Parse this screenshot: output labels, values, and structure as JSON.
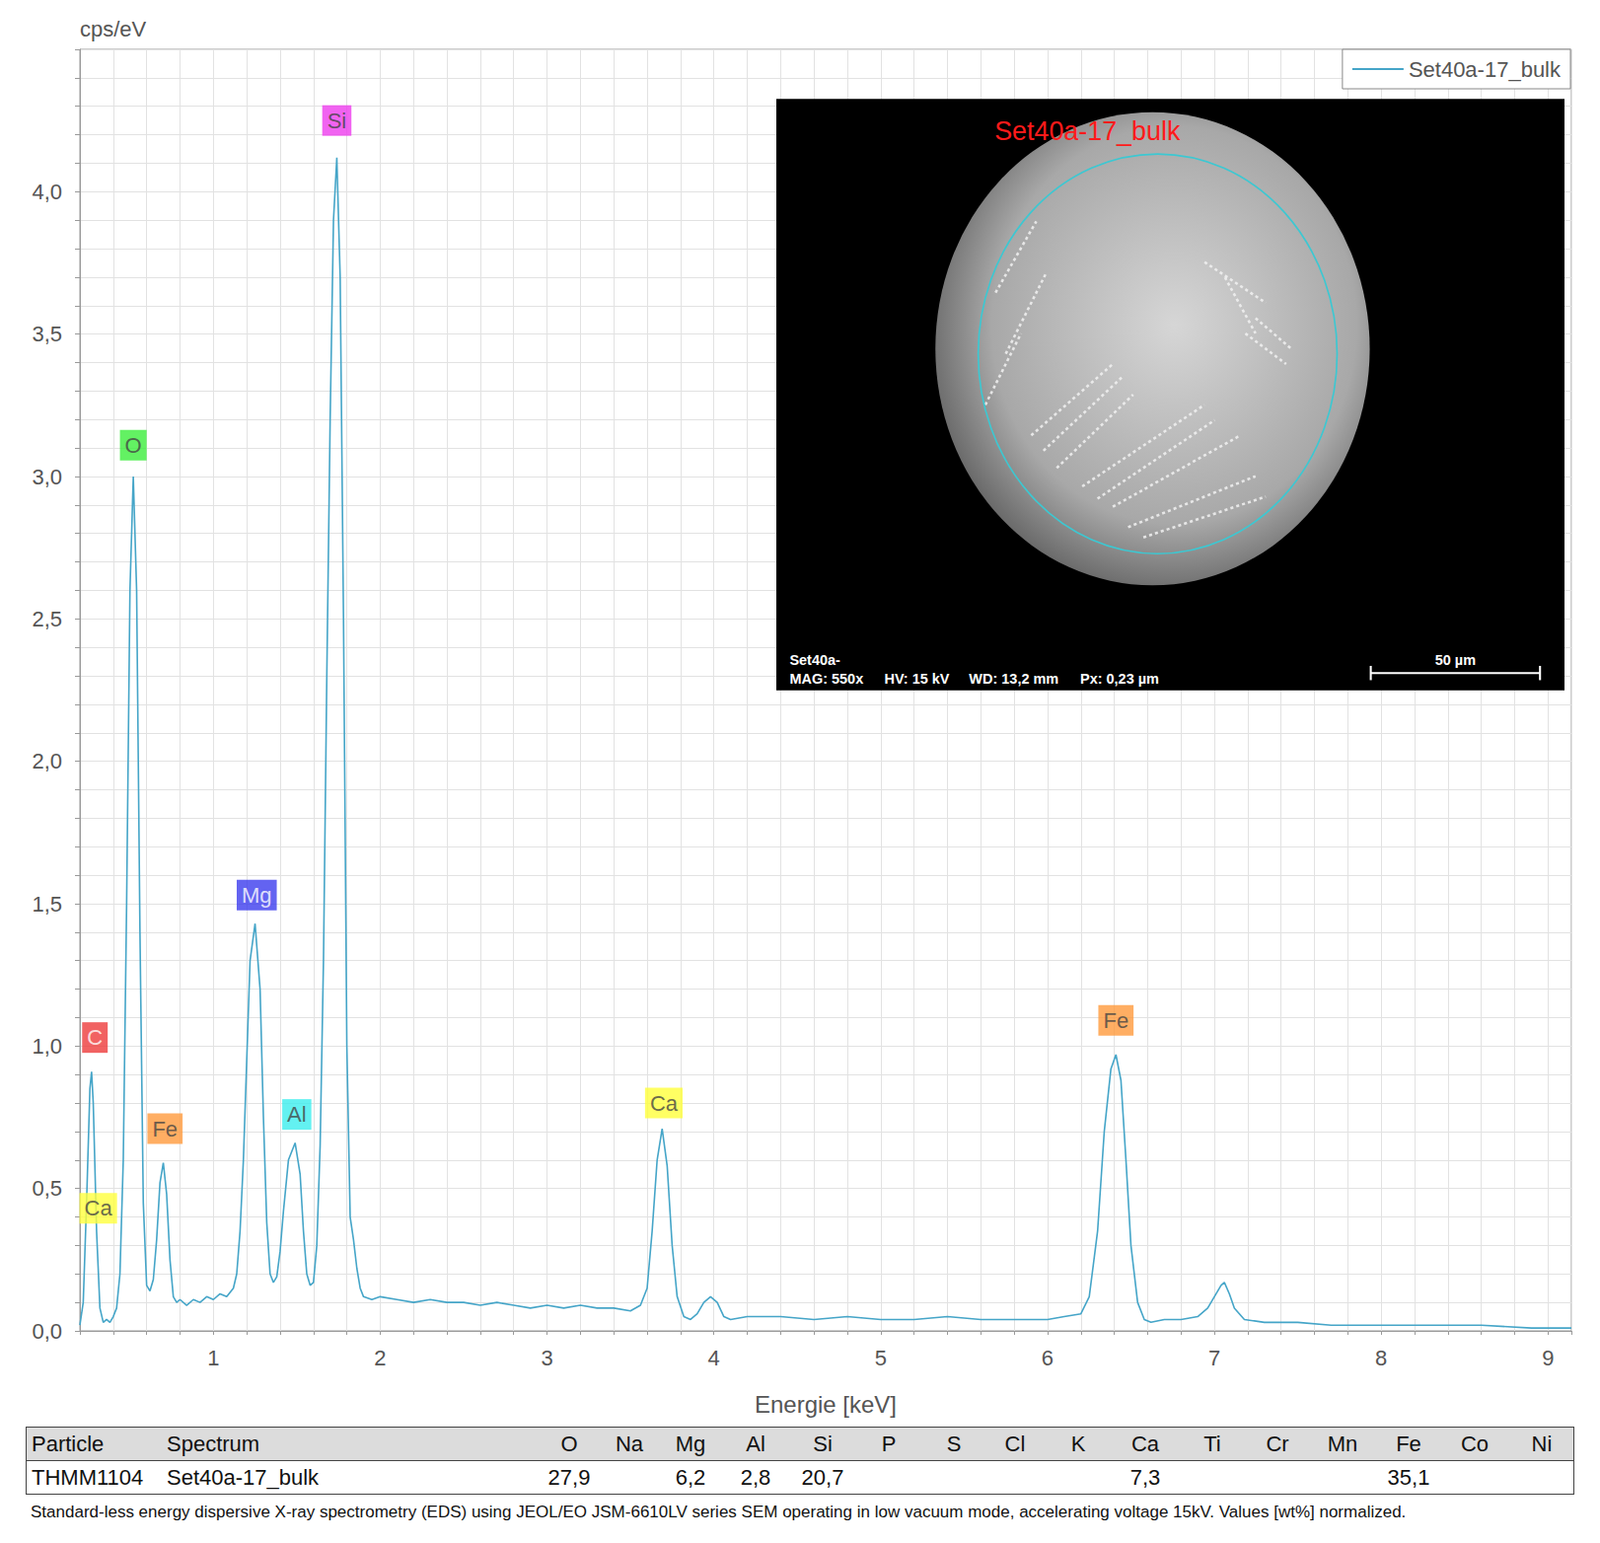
{
  "chart_data": {
    "type": "line",
    "y_label": "cps/eV",
    "x_label": "Energie [keV]",
    "xlim": [
      0.2,
      9.14
    ],
    "xticks": [
      1,
      2,
      3,
      4,
      5,
      6,
      7,
      8,
      9
    ],
    "ylim": [
      0,
      4.5
    ],
    "yticks": [
      {
        "value": 0,
        "label": "0,0"
      },
      {
        "value": 0.5,
        "label": "0,5"
      },
      {
        "value": 1,
        "label": "1,0"
      },
      {
        "value": 1.5,
        "label": "1,5"
      },
      {
        "value": 2,
        "label": "2,0"
      },
      {
        "value": 2.5,
        "label": "2,5"
      },
      {
        "value": 3,
        "label": "3,0"
      },
      {
        "value": 3.5,
        "label": "3,5"
      },
      {
        "value": 4,
        "label": "4,0"
      }
    ],
    "grid": true,
    "legend": "top-right",
    "x": [
      0.2,
      0.22,
      0.24,
      0.26,
      0.27,
      0.28,
      0.3,
      0.32,
      0.34,
      0.36,
      0.38,
      0.4,
      0.42,
      0.44,
      0.46,
      0.48,
      0.5,
      0.52,
      0.54,
      0.56,
      0.58,
      0.6,
      0.62,
      0.64,
      0.66,
      0.68,
      0.7,
      0.72,
      0.74,
      0.76,
      0.78,
      0.8,
      0.84,
      0.88,
      0.92,
      0.96,
      1.0,
      1.04,
      1.08,
      1.12,
      1.14,
      1.16,
      1.18,
      1.2,
      1.22,
      1.25,
      1.28,
      1.3,
      1.32,
      1.34,
      1.36,
      1.38,
      1.4,
      1.42,
      1.45,
      1.49,
      1.52,
      1.54,
      1.56,
      1.58,
      1.6,
      1.62,
      1.64,
      1.66,
      1.68,
      1.7,
      1.72,
      1.74,
      1.76,
      1.78,
      1.8,
      1.82,
      1.84,
      1.86,
      1.88,
      1.9,
      1.95,
      2.0,
      2.1,
      2.2,
      2.3,
      2.4,
      2.5,
      2.6,
      2.7,
      2.8,
      2.9,
      3.0,
      3.1,
      3.2,
      3.3,
      3.4,
      3.5,
      3.56,
      3.6,
      3.63,
      3.66,
      3.69,
      3.72,
      3.75,
      3.78,
      3.82,
      3.86,
      3.9,
      3.94,
      3.98,
      4.02,
      4.06,
      4.1,
      4.2,
      4.4,
      4.6,
      4.8,
      5.0,
      5.2,
      5.4,
      5.6,
      5.8,
      6.0,
      6.1,
      6.2,
      6.25,
      6.3,
      6.34,
      6.38,
      6.41,
      6.44,
      6.47,
      6.5,
      6.54,
      6.58,
      6.62,
      6.7,
      6.8,
      6.9,
      6.96,
      7.0,
      7.04,
      7.06,
      7.09,
      7.12,
      7.18,
      7.3,
      7.5,
      7.7,
      8.0,
      8.3,
      8.6,
      8.9,
      9.14
    ],
    "series": [
      {
        "name": "Set40a-17_bulk",
        "color": "#45a5c8",
        "values": [
          0.02,
          0.1,
          0.45,
          0.85,
          0.91,
          0.8,
          0.35,
          0.08,
          0.03,
          0.04,
          0.03,
          0.05,
          0.08,
          0.2,
          0.6,
          1.5,
          2.6,
          3.0,
          2.6,
          1.4,
          0.45,
          0.16,
          0.14,
          0.18,
          0.32,
          0.52,
          0.59,
          0.48,
          0.25,
          0.12,
          0.1,
          0.11,
          0.09,
          0.11,
          0.1,
          0.12,
          0.11,
          0.13,
          0.12,
          0.15,
          0.2,
          0.35,
          0.6,
          0.95,
          1.3,
          1.43,
          1.2,
          0.75,
          0.38,
          0.2,
          0.17,
          0.19,
          0.28,
          0.42,
          0.6,
          0.66,
          0.55,
          0.35,
          0.2,
          0.16,
          0.17,
          0.3,
          0.65,
          1.3,
          2.3,
          3.2,
          3.9,
          4.12,
          3.7,
          2.5,
          1.0,
          0.4,
          0.32,
          0.22,
          0.15,
          0.12,
          0.11,
          0.12,
          0.11,
          0.1,
          0.11,
          0.1,
          0.1,
          0.09,
          0.1,
          0.09,
          0.08,
          0.09,
          0.08,
          0.09,
          0.08,
          0.08,
          0.07,
          0.09,
          0.15,
          0.35,
          0.6,
          0.71,
          0.58,
          0.3,
          0.12,
          0.05,
          0.04,
          0.06,
          0.1,
          0.12,
          0.1,
          0.05,
          0.04,
          0.05,
          0.05,
          0.04,
          0.05,
          0.04,
          0.04,
          0.05,
          0.04,
          0.04,
          0.04,
          0.05,
          0.06,
          0.12,
          0.35,
          0.7,
          0.92,
          0.97,
          0.88,
          0.6,
          0.3,
          0.1,
          0.04,
          0.03,
          0.04,
          0.04,
          0.05,
          0.08,
          0.12,
          0.16,
          0.17,
          0.13,
          0.08,
          0.04,
          0.03,
          0.03,
          0.02,
          0.02,
          0.02,
          0.02,
          0.01,
          0.01
        ]
      }
    ],
    "annotations": [
      {
        "text": "C",
        "x": 0.29,
        "y": 1.03,
        "color": "#ee3b3b"
      },
      {
        "text": "Ca",
        "x": 0.31,
        "y": 0.43,
        "color": "#ffff3c"
      },
      {
        "text": "O",
        "x": 0.52,
        "y": 3.11,
        "color": "#3cee3c"
      },
      {
        "text": "Fe",
        "x": 0.71,
        "y": 0.71,
        "color": "#ff9a3c"
      },
      {
        "text": "Mg",
        "x": 1.26,
        "y": 1.53,
        "color": "#3c3cee"
      },
      {
        "text": "Al",
        "x": 1.5,
        "y": 0.76,
        "color": "#3ceeee"
      },
      {
        "text": "Si",
        "x": 1.74,
        "y": 4.25,
        "color": "#ee3cee"
      },
      {
        "text": "Ca",
        "x": 3.7,
        "y": 0.8,
        "color": "#ffff3c"
      },
      {
        "text": "Fe",
        "x": 6.41,
        "y": 1.09,
        "color": "#ff9a3c"
      }
    ]
  },
  "inset": {
    "title": "Set40a-17_bulk",
    "info_line1": "Set40a-",
    "info_line2": [
      "MAG: 550x",
      "HV: 15 kV",
      "WD: 13,2 mm",
      "Px: 0,23 µm"
    ],
    "scale_bar": "50 µm"
  },
  "table": {
    "header": [
      "Particle",
      "Spectrum",
      "O",
      "Na",
      "Mg",
      "Al",
      "Si",
      "P",
      "S",
      "Cl",
      "K",
      "Ca",
      "Ti",
      "Cr",
      "Mn",
      "Fe",
      "Co",
      "Ni"
    ],
    "rows": [
      [
        "THMM1104",
        "Set40a-17_bulk",
        "27,9",
        null,
        "6,2",
        "2,8",
        "20,7",
        null,
        null,
        null,
        null,
        "7,3",
        null,
        null,
        null,
        "35,1",
        null,
        null
      ]
    ]
  },
  "caption": "Standard-less energy dispersive X-ray spectrometry (EDS) using JEOL/EO JSM-6610LV series SEM operating in low vacuum mode, accelerating voltage 15kV. Values [wt%] normalized."
}
